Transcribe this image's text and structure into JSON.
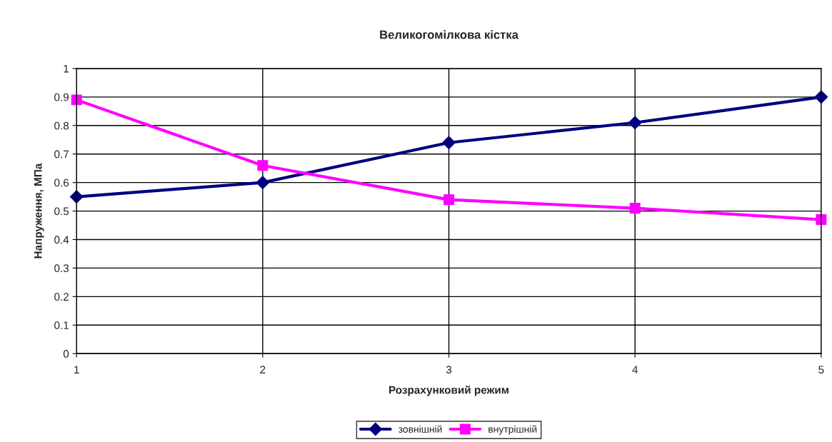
{
  "chart_data": {
    "type": "line",
    "title": "Великогомілкова кістка",
    "xlabel": "Розрахунковий режим",
    "ylabel": "Напруження, МПа",
    "x": [
      1,
      2,
      3,
      4,
      5
    ],
    "series": [
      {
        "name": "зовнішній",
        "color": "#000080",
        "marker": "diamond",
        "values": [
          0.55,
          0.6,
          0.74,
          0.81,
          0.9
        ]
      },
      {
        "name": "внутрішній",
        "color": "#ff00ff",
        "marker": "square",
        "values": [
          0.89,
          0.66,
          0.54,
          0.51,
          0.47
        ]
      }
    ],
    "xlim": [
      1,
      5
    ],
    "xticks": [
      1,
      2,
      3,
      4,
      5
    ],
    "ylim": [
      0,
      1
    ],
    "yticks": [
      0,
      0.1,
      0.2,
      0.3,
      0.4,
      0.5,
      0.6,
      0.7,
      0.8,
      0.9,
      1
    ],
    "grid": true,
    "legend": "bottom",
    "line_style": "solid"
  }
}
